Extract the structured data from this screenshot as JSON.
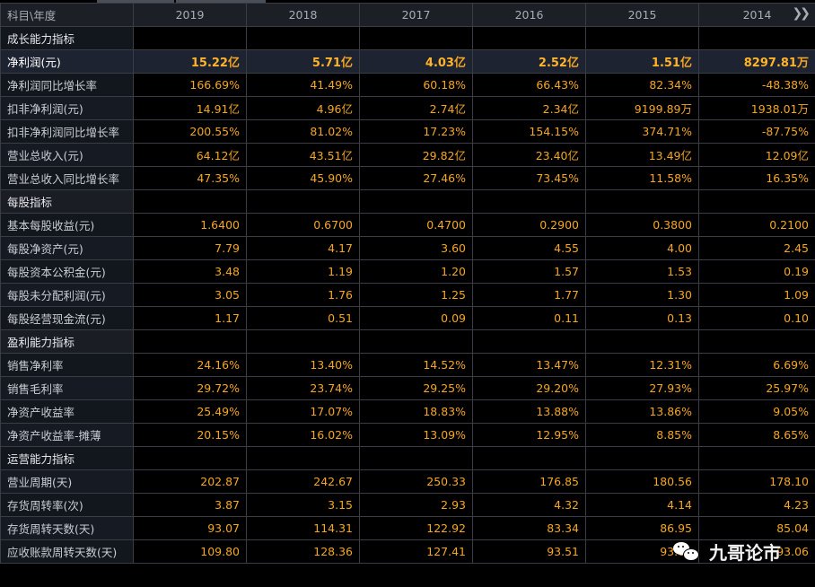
{
  "header": {
    "label": "科目\\年度",
    "years": [
      "2019",
      "2018",
      "2017",
      "2016",
      "2015",
      "2014"
    ],
    "more_icon": "double-chevron-right-icon"
  },
  "rows": [
    {
      "type": "section",
      "label": "成长能力指标"
    },
    {
      "type": "highlight",
      "label": "净利润(元)",
      "values": [
        [
          "15.22",
          "亿"
        ],
        [
          "5.71",
          "亿"
        ],
        [
          "4.03",
          "亿"
        ],
        [
          "2.52",
          "亿"
        ],
        [
          "1.51",
          "亿"
        ],
        [
          "8297.81",
          "万"
        ]
      ]
    },
    {
      "type": "data",
      "label": "净利润同比增长率",
      "values": [
        [
          "166.69%",
          ""
        ],
        [
          "41.49%",
          ""
        ],
        [
          "60.18%",
          ""
        ],
        [
          "66.43%",
          ""
        ],
        [
          "82.34%",
          ""
        ],
        [
          "-48.38%",
          ""
        ]
      ]
    },
    {
      "type": "data",
      "label": "扣非净利润(元)",
      "values": [
        [
          "14.91",
          "亿"
        ],
        [
          "4.96",
          "亿"
        ],
        [
          "2.74",
          "亿"
        ],
        [
          "2.34",
          "亿"
        ],
        [
          "9199.89",
          "万"
        ],
        [
          "1938.01",
          "万"
        ]
      ]
    },
    {
      "type": "data",
      "label": "扣非净利润同比增长率",
      "values": [
        [
          "200.55%",
          ""
        ],
        [
          "81.02%",
          ""
        ],
        [
          "17.23%",
          ""
        ],
        [
          "154.15%",
          ""
        ],
        [
          "374.71%",
          ""
        ],
        [
          "-87.75%",
          ""
        ]
      ]
    },
    {
      "type": "data",
      "label": "营业总收入(元)",
      "values": [
        [
          "64.12",
          "亿"
        ],
        [
          "43.51",
          "亿"
        ],
        [
          "29.82",
          "亿"
        ],
        [
          "23.40",
          "亿"
        ],
        [
          "13.49",
          "亿"
        ],
        [
          "12.09",
          "亿"
        ]
      ]
    },
    {
      "type": "data",
      "label": "营业总收入同比增长率",
      "values": [
        [
          "47.35%",
          ""
        ],
        [
          "45.90%",
          ""
        ],
        [
          "27.46%",
          ""
        ],
        [
          "73.45%",
          ""
        ],
        [
          "11.58%",
          ""
        ],
        [
          "16.35%",
          ""
        ]
      ]
    },
    {
      "type": "section",
      "label": "每股指标"
    },
    {
      "type": "data",
      "label": "基本每股收益(元)",
      "values": [
        [
          "1.6400",
          ""
        ],
        [
          "0.6700",
          ""
        ],
        [
          "0.4700",
          ""
        ],
        [
          "0.2900",
          ""
        ],
        [
          "0.3800",
          ""
        ],
        [
          "0.2100",
          ""
        ]
      ]
    },
    {
      "type": "data",
      "label": "每股净资产(元)",
      "values": [
        [
          "7.79",
          ""
        ],
        [
          "4.17",
          ""
        ],
        [
          "3.60",
          ""
        ],
        [
          "4.55",
          ""
        ],
        [
          "4.00",
          ""
        ],
        [
          "2.45",
          ""
        ]
      ]
    },
    {
      "type": "data",
      "label": "每股资本公积金(元)",
      "values": [
        [
          "3.48",
          ""
        ],
        [
          "1.19",
          ""
        ],
        [
          "1.20",
          ""
        ],
        [
          "1.57",
          ""
        ],
        [
          "1.53",
          ""
        ],
        [
          "0.19",
          ""
        ]
      ]
    },
    {
      "type": "data",
      "label": "每股未分配利润(元)",
      "values": [
        [
          "3.05",
          ""
        ],
        [
          "1.76",
          ""
        ],
        [
          "1.25",
          ""
        ],
        [
          "1.77",
          ""
        ],
        [
          "1.30",
          ""
        ],
        [
          "1.09",
          ""
        ]
      ]
    },
    {
      "type": "data",
      "label": "每股经营现金流(元)",
      "values": [
        [
          "1.17",
          ""
        ],
        [
          "0.51",
          ""
        ],
        [
          "0.09",
          ""
        ],
        [
          "0.11",
          ""
        ],
        [
          "0.13",
          ""
        ],
        [
          "0.10",
          ""
        ]
      ]
    },
    {
      "type": "section",
      "label": "盈利能力指标"
    },
    {
      "type": "data",
      "label": "销售净利率",
      "values": [
        [
          "24.16%",
          ""
        ],
        [
          "13.40%",
          ""
        ],
        [
          "14.52%",
          ""
        ],
        [
          "13.47%",
          ""
        ],
        [
          "12.31%",
          ""
        ],
        [
          "6.69%",
          ""
        ]
      ]
    },
    {
      "type": "data",
      "label": "销售毛利率",
      "values": [
        [
          "29.72%",
          ""
        ],
        [
          "23.74%",
          ""
        ],
        [
          "29.25%",
          ""
        ],
        [
          "29.20%",
          ""
        ],
        [
          "27.93%",
          ""
        ],
        [
          "25.97%",
          ""
        ]
      ]
    },
    {
      "type": "data",
      "label": "净资产收益率",
      "values": [
        [
          "25.49%",
          ""
        ],
        [
          "17.07%",
          ""
        ],
        [
          "18.83%",
          ""
        ],
        [
          "13.88%",
          ""
        ],
        [
          "13.86%",
          ""
        ],
        [
          "9.05%",
          ""
        ]
      ]
    },
    {
      "type": "data",
      "label": "净资产收益率-摊薄",
      "values": [
        [
          "20.15%",
          ""
        ],
        [
          "16.02%",
          ""
        ],
        [
          "13.09%",
          ""
        ],
        [
          "12.95%",
          ""
        ],
        [
          "8.85%",
          ""
        ],
        [
          "8.65%",
          ""
        ]
      ]
    },
    {
      "type": "section",
      "label": "运营能力指标"
    },
    {
      "type": "data",
      "label": "营业周期(天)",
      "values": [
        [
          "202.87",
          ""
        ],
        [
          "242.67",
          ""
        ],
        [
          "250.33",
          ""
        ],
        [
          "176.85",
          ""
        ],
        [
          "180.56",
          ""
        ],
        [
          "178.10",
          ""
        ]
      ]
    },
    {
      "type": "data",
      "label": "存货周转率(次)",
      "values": [
        [
          "3.87",
          ""
        ],
        [
          "3.15",
          ""
        ],
        [
          "2.93",
          ""
        ],
        [
          "4.32",
          ""
        ],
        [
          "4.14",
          ""
        ],
        [
          "4.23",
          ""
        ]
      ]
    },
    {
      "type": "data",
      "label": "存货周转天数(天)",
      "values": [
        [
          "93.07",
          ""
        ],
        [
          "114.31",
          ""
        ],
        [
          "122.92",
          ""
        ],
        [
          "83.34",
          ""
        ],
        [
          "86.95",
          ""
        ],
        [
          "85.04",
          ""
        ]
      ]
    },
    {
      "type": "data",
      "label": "应收账款周转天数(天)",
      "values": [
        [
          "109.80",
          ""
        ],
        [
          "128.36",
          ""
        ],
        [
          "127.41",
          ""
        ],
        [
          "93.51",
          ""
        ],
        [
          "93.61",
          ""
        ],
        [
          "93.06",
          ""
        ]
      ]
    }
  ],
  "watermark": {
    "text": "九哥论市",
    "icon": "wechat-icon"
  }
}
